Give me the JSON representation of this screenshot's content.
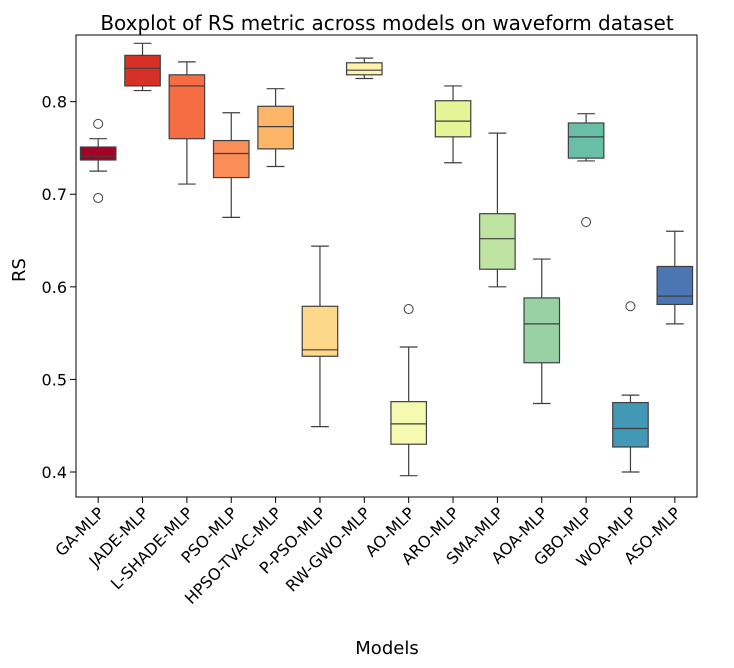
{
  "chart_data": {
    "type": "box",
    "title": "Boxplot of RS metric across models on waveform dataset",
    "xlabel": "Models",
    "ylabel": "RS",
    "ylim": [
      0.373,
      0.872
    ],
    "yticks": [
      0.4,
      0.5,
      0.6,
      0.7,
      0.8
    ],
    "ytick_labels": [
      "0.4",
      "0.5",
      "0.6",
      "0.7",
      "0.8"
    ],
    "grid": false,
    "legend": "none",
    "series": [
      {
        "category": "GA-MLP",
        "color": "#a50026",
        "whisker_low": 0.725,
        "q1": 0.737,
        "median": 0.741,
        "q3": 0.751,
        "whisker_high": 0.76,
        "outliers": [
          0.776,
          0.696
        ]
      },
      {
        "category": "JADE-MLP",
        "color": "#d73027",
        "whisker_low": 0.812,
        "q1": 0.817,
        "median": 0.836,
        "q3": 0.85,
        "whisker_high": 0.863,
        "outliers": []
      },
      {
        "category": "L-SHADE-MLP",
        "color": "#f46d43",
        "whisker_low": 0.711,
        "q1": 0.76,
        "median": 0.817,
        "q3": 0.829,
        "whisker_high": 0.843,
        "outliers": []
      },
      {
        "category": "PSO-MLP",
        "color": "#fb8d59",
        "whisker_low": 0.675,
        "q1": 0.718,
        "median": 0.744,
        "q3": 0.758,
        "whisker_high": 0.788,
        "outliers": []
      },
      {
        "category": "HPSO-TVAC-MLP",
        "color": "#fdb668",
        "whisker_low": 0.73,
        "q1": 0.749,
        "median": 0.773,
        "q3": 0.795,
        "whisker_high": 0.814,
        "outliers": []
      },
      {
        "category": "P-PSO-MLP",
        "color": "#fed88a",
        "whisker_low": 0.449,
        "q1": 0.525,
        "median": 0.532,
        "q3": 0.579,
        "whisker_high": 0.644,
        "outliers": []
      },
      {
        "category": "RW-GWO-MLP",
        "color": "#fef2aa",
        "whisker_low": 0.825,
        "q1": 0.829,
        "median": 0.834,
        "q3": 0.842,
        "whisker_high": 0.847,
        "outliers": []
      },
      {
        "category": "AO-MLP",
        "color": "#f5fab0",
        "whisker_low": 0.396,
        "q1": 0.43,
        "median": 0.452,
        "q3": 0.476,
        "whisker_high": 0.535,
        "outliers": [
          0.576
        ]
      },
      {
        "category": "ARO-MLP",
        "color": "#e5f497",
        "whisker_low": 0.734,
        "q1": 0.762,
        "median": 0.779,
        "q3": 0.801,
        "whisker_high": 0.817,
        "outliers": []
      },
      {
        "category": "SMA-MLP",
        "color": "#bfe3a1",
        "whisker_low": 0.6,
        "q1": 0.619,
        "median": 0.652,
        "q3": 0.679,
        "whisker_high": 0.766,
        "outliers": []
      },
      {
        "category": "AOA-MLP",
        "color": "#98d2a4",
        "whisker_low": 0.474,
        "q1": 0.518,
        "median": 0.56,
        "q3": 0.588,
        "whisker_high": 0.63,
        "outliers": []
      },
      {
        "category": "GBO-MLP",
        "color": "#68bfa5",
        "whisker_low": 0.736,
        "q1": 0.739,
        "median": 0.762,
        "q3": 0.777,
        "whisker_high": 0.787,
        "outliers": [
          0.67
        ]
      },
      {
        "category": "WOA-MLP",
        "color": "#4298b5",
        "whisker_low": 0.4,
        "q1": 0.427,
        "median": 0.447,
        "q3": 0.475,
        "whisker_high": 0.483,
        "outliers": [
          0.579
        ]
      },
      {
        "category": "ASO-MLP",
        "color": "#4c76b3",
        "whisker_low": 0.56,
        "q1": 0.581,
        "median": 0.59,
        "q3": 0.622,
        "whisker_high": 0.66,
        "outliers": []
      }
    ]
  }
}
